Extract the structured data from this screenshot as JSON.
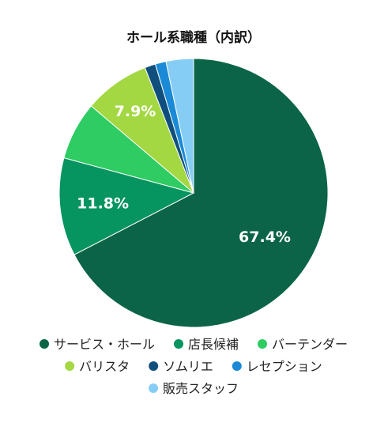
{
  "chart_data": {
    "type": "pie",
    "title": "ホール系職種（内訳）",
    "series": [
      {
        "label": "サービス・ホール",
        "value": 67.4,
        "color": "#0b6447",
        "data_label": "67.4%"
      },
      {
        "label": "店長候補",
        "value": 11.8,
        "color": "#069461",
        "data_label": "11.8%"
      },
      {
        "label": "バーテンダー",
        "value": 7.0,
        "color": "#2ecc63",
        "data_label": ""
      },
      {
        "label": "バリスタ",
        "value": 7.9,
        "color": "#a4d843",
        "data_label": "7.9%"
      },
      {
        "label": "ソムリエ",
        "value": 1.3,
        "color": "#104f7d",
        "data_label": ""
      },
      {
        "label": "レセプション",
        "value": 1.3,
        "color": "#1a8ad6",
        "data_label": ""
      },
      {
        "label": "販売スタッフ",
        "value": 3.3,
        "color": "#86cdf5",
        "data_label": ""
      }
    ],
    "legend_position": "bottom"
  }
}
